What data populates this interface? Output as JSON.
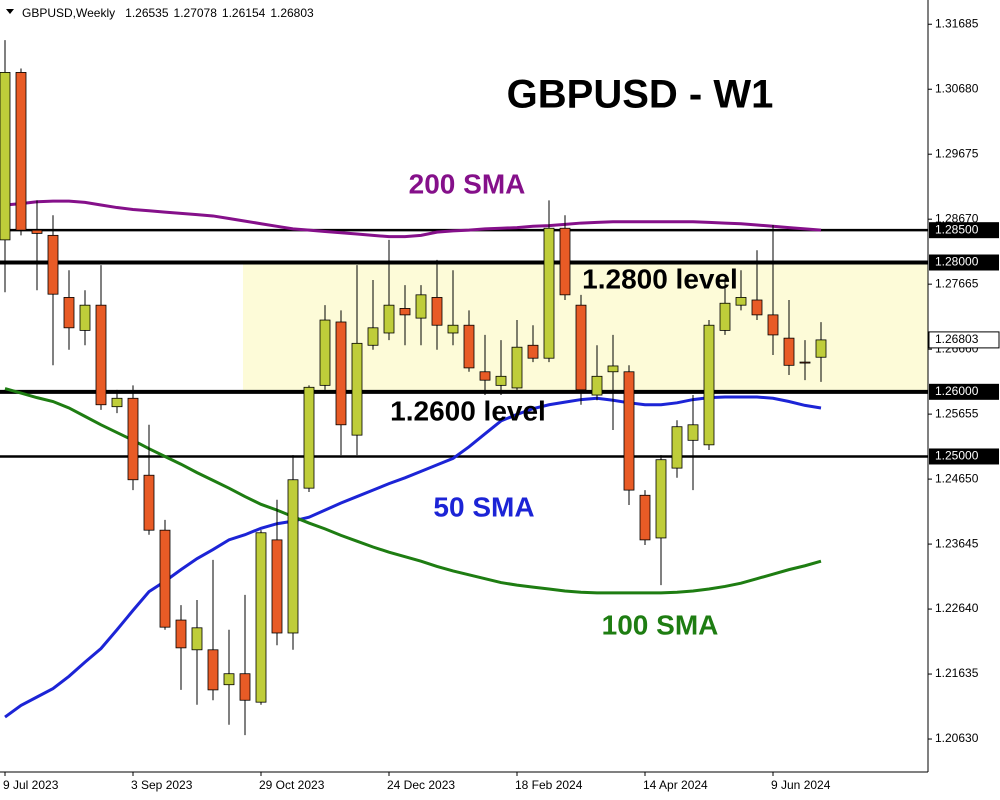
{
  "chart_data": {
    "type": "candlestick",
    "title": "GBPUSD - W1",
    "symbol": "GBPUSD,Weekly",
    "categories": [
      "9 Jul 2023",
      null,
      null,
      null,
      null,
      null,
      null,
      null,
      "3 Sep 2023",
      null,
      null,
      null,
      null,
      null,
      null,
      null,
      "29 Oct 2023",
      null,
      null,
      null,
      null,
      null,
      null,
      null,
      "24 Dec 2023",
      null,
      null,
      null,
      null,
      null,
      null,
      null,
      "18 Feb 2024",
      null,
      null,
      null,
      null,
      null,
      null,
      null,
      "14 Apr 2024",
      null,
      null,
      null,
      null,
      null,
      null,
      null,
      "9 Jun 2024",
      null,
      null,
      null
    ],
    "ohlc": {
      "open": [
        1.2835,
        1.3094,
        1.285,
        1.2842,
        1.2746,
        1.2695,
        1.2734,
        1.2577,
        1.259,
        1.2471,
        1.2386,
        1.2247,
        1.2201,
        1.2201,
        1.2147,
        1.2164,
        1.212,
        1.2371,
        1.2227,
        1.2451,
        1.261,
        1.2708,
        1.2533,
        1.2672,
        1.2691,
        1.2729,
        1.2714,
        1.2746,
        1.2691,
        1.2703,
        1.2631,
        1.261,
        1.2606,
        1.2672,
        1.2652,
        1.2853,
        1.2734,
        1.2595,
        1.2631,
        1.2631,
        1.244,
        1.2374,
        1.2482,
        1.2525,
        1.2518,
        1.2695,
        1.2734,
        1.2742,
        1.2719,
        1.2683,
        1.2646,
        1.26535
      ],
      "high": [
        1.3144,
        1.31,
        1.2896,
        1.2873,
        1.2788,
        1.2757,
        1.2796,
        1.2603,
        1.261,
        1.2549,
        1.2402,
        1.227,
        1.2278,
        1.234,
        1.2232,
        1.2286,
        1.2386,
        1.2433,
        1.2502,
        1.261,
        1.2734,
        1.2726,
        1.2796,
        1.2773,
        1.2835,
        1.2765,
        1.2765,
        1.2804,
        1.2788,
        1.2726,
        1.2688,
        1.268,
        1.2711,
        1.2703,
        1.2896,
        1.2873,
        1.275,
        1.2672,
        1.2688,
        1.2641,
        1.2448,
        1.2502,
        1.2556,
        1.2595,
        1.2711,
        1.2776,
        1.2788,
        1.2819,
        1.2858,
        1.2742,
        1.268,
        1.27078
      ],
      "low": [
        1.2754,
        1.2842,
        1.2757,
        1.2641,
        1.2665,
        1.2672,
        1.2572,
        1.2567,
        1.2448,
        1.2379,
        1.2232,
        1.2139,
        1.2116,
        1.2123,
        1.2085,
        1.2069,
        1.2116,
        1.2208,
        1.2201,
        1.2445,
        1.2603,
        1.2502,
        1.2502,
        1.2665,
        1.268,
        1.2672,
        1.2672,
        1.2665,
        1.2672,
        1.2631,
        1.2595,
        1.2595,
        1.2603,
        1.2646,
        1.2646,
        1.2742,
        1.258,
        1.2587,
        1.2541,
        1.2425,
        1.2363,
        1.2301,
        1.2467,
        1.2448,
        1.251,
        1.2688,
        1.2726,
        1.2711,
        1.2657,
        1.2626,
        1.2618,
        1.26154
      ],
      "close": [
        1.3094,
        1.285,
        1.2845,
        1.2751,
        1.2699,
        1.2734,
        1.258,
        1.259,
        1.2464,
        1.2386,
        1.2236,
        1.2204,
        1.2235,
        1.2139,
        1.2164,
        1.2123,
        1.2382,
        1.2227,
        1.2464,
        1.2607,
        1.2711,
        1.2549,
        1.2675,
        1.2699,
        1.2734,
        1.2719,
        1.275,
        1.2703,
        1.2703,
        1.2637,
        1.2618,
        1.2624,
        1.2669,
        1.2652,
        1.2853,
        1.275,
        1.2603,
        1.2624,
        1.264,
        1.2448,
        1.2371,
        1.2495,
        1.2546,
        1.2549,
        1.2703,
        1.2737,
        1.2746,
        1.2719,
        1.2688,
        1.2641,
        1.2645,
        1.26803
      ]
    },
    "up_color": "#bfcd3a",
    "down_color": "#e85b26",
    "lines": [
      {
        "name": "200 SMA",
        "color": "#85108a",
        "values": [
          1.2889,
          1.2891,
          1.2894,
          1.2895,
          1.2895,
          1.2893,
          1.2889,
          1.2885,
          1.2882,
          1.288,
          1.2878,
          1.2876,
          1.2874,
          1.2872,
          1.2868,
          1.2864,
          1.286,
          1.2856,
          1.2852,
          1.285,
          1.2848,
          1.2846,
          1.2844,
          1.2842,
          1.284,
          1.284,
          1.2842,
          1.2847,
          1.2849,
          1.285,
          1.2852,
          1.2853,
          1.2854,
          1.2856,
          1.2857,
          1.2859,
          1.2861,
          1.2862,
          1.2863,
          1.2863,
          1.2863,
          1.2863,
          1.2863,
          1.2863,
          1.2862,
          1.2861,
          1.286,
          1.2858,
          1.2856,
          1.2854,
          1.2852,
          1.285
        ]
      },
      {
        "name": "50 SMA",
        "color": "#1c24d6",
        "values": [
          1.2097,
          1.2115,
          1.2128,
          1.2141,
          1.216,
          1.2182,
          1.2203,
          1.2232,
          1.2262,
          1.2291,
          1.2307,
          1.2325,
          1.2342,
          1.2356,
          1.2371,
          1.2379,
          1.2389,
          1.2396,
          1.24,
          1.2406,
          1.2417,
          1.2428,
          1.2438,
          1.2448,
          1.2458,
          1.2467,
          1.2477,
          1.2487,
          1.2497,
          1.2515,
          1.2535,
          1.2555,
          1.2565,
          1.2574,
          1.258,
          1.2584,
          1.2588,
          1.259,
          1.2587,
          1.2583,
          1.258,
          1.258,
          1.2583,
          1.2588,
          1.2591,
          1.2592,
          1.2592,
          1.2592,
          1.259,
          1.2585,
          1.2579,
          1.2575
        ]
      },
      {
        "name": "100 SMA",
        "color": "#1e7d12",
        "values": [
          1.2605,
          1.2598,
          1.2591,
          1.2585,
          1.2575,
          1.2562,
          1.2549,
          1.2537,
          1.2525,
          1.2512,
          1.25,
          1.2488,
          1.2475,
          1.2463,
          1.2451,
          1.2438,
          1.2426,
          1.2417,
          1.2407,
          1.2397,
          1.2388,
          1.2378,
          1.2369,
          1.236,
          1.2352,
          1.2345,
          1.2338,
          1.233,
          1.2323,
          1.2317,
          1.2311,
          1.2305,
          1.2301,
          1.2298,
          1.2295,
          1.2292,
          1.229,
          1.2289,
          1.2289,
          1.2289,
          1.2289,
          1.2289,
          1.229,
          1.2292,
          1.2295,
          1.2299,
          1.2304,
          1.2311,
          1.2318,
          1.2325,
          1.2331,
          1.2338
        ]
      }
    ],
    "ylim": [
      1.2012,
      1.3206
    ],
    "yticks": [
      1.31685,
      {
        "value": 1.3068,
        "label": "1.30680"
      },
      1.29675,
      {
        "value": 1.2867,
        "label": "1.28670"
      },
      1.27665,
      {
        "value": 1.2666,
        "label": "1.26660"
      },
      1.25655,
      {
        "value": 1.2465,
        "label": "1.24650"
      },
      1.23645,
      {
        "value": 1.2264,
        "label": "1.22640"
      },
      1.21635,
      {
        "value": 1.2063,
        "label": "1.20630"
      }
    ],
    "levels": [
      {
        "value": 1.285,
        "label": "1.28500"
      },
      {
        "value": 1.28,
        "label": "1.28000"
      },
      {
        "value": 1.26,
        "label": "1.26000"
      },
      {
        "value": 1.25,
        "label": "1.25000"
      }
    ],
    "zone": {
      "from": 1.26,
      "to": 1.28,
      "color": "#fdfbd8"
    },
    "level_labels": [
      "1.2800 level",
      "1.2600 level"
    ]
  }
}
